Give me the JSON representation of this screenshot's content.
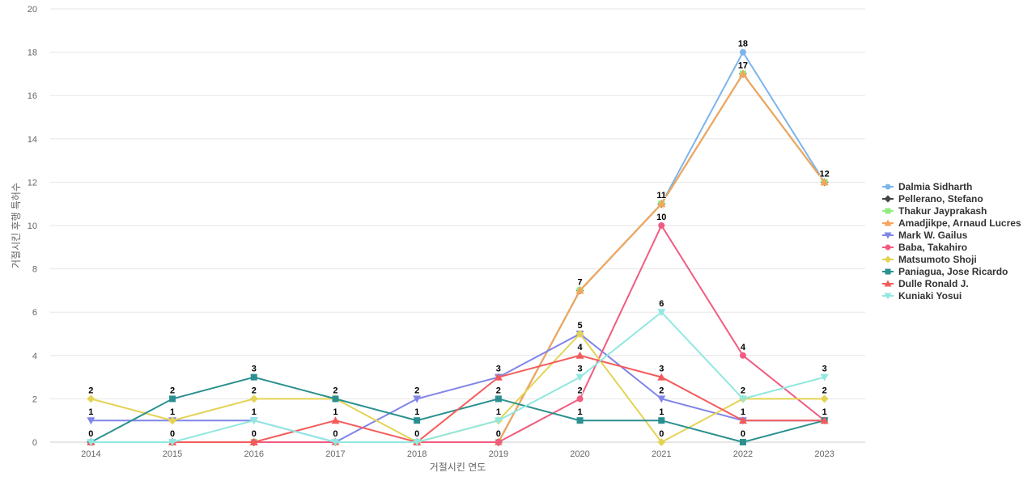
{
  "chart_data": {
    "type": "line",
    "title": "",
    "xlabel": "거절시킨 연도",
    "ylabel": "거절시킨 후행 특허수",
    "x": [
      "2014",
      "2015",
      "2016",
      "2017",
      "2018",
      "2019",
      "2020",
      "2021",
      "2022",
      "2023"
    ],
    "ylim": [
      0,
      20
    ],
    "yticks": [
      0,
      2,
      4,
      6,
      8,
      10,
      12,
      14,
      16,
      18,
      20
    ],
    "grid": true,
    "legend_position": "right",
    "series": [
      {
        "name": "Dalmia Sidharth",
        "color": "#7cb5ec",
        "marker": "circle",
        "values": [
          0,
          0,
          0,
          0,
          0,
          0,
          7,
          11,
          18,
          12
        ],
        "labels": true
      },
      {
        "name": "Pellerano, Stefano",
        "color": "#434348",
        "marker": "diamond",
        "values": [
          0,
          0,
          0,
          0,
          0,
          0,
          7,
          11,
          17,
          12
        ],
        "labels": false
      },
      {
        "name": "Thakur Jayprakash",
        "color": "#90ed7d",
        "marker": "square",
        "values": [
          0,
          0,
          0,
          0,
          0,
          0,
          7,
          11,
          17,
          12
        ],
        "labels": false
      },
      {
        "name": "Amadjikpe, Arnaud Lucres",
        "color": "#f7a35c",
        "marker": "triangle",
        "values": [
          0,
          0,
          0,
          0,
          0,
          0,
          7,
          11,
          17,
          12
        ],
        "labels": true
      },
      {
        "name": "Mark W. Gailus",
        "color": "#8085e9",
        "marker": "triangle-down",
        "values": [
          1,
          1,
          1,
          0,
          2,
          3,
          5,
          2,
          1,
          1
        ],
        "labels": true
      },
      {
        "name": "Baba, Takahiro",
        "color": "#f15c80",
        "marker": "circle",
        "values": [
          0,
          0,
          0,
          0,
          0,
          0,
          2,
          10,
          4,
          1
        ],
        "labels": true
      },
      {
        "name": "Matsumoto Shoji",
        "color": "#e4d354",
        "marker": "diamond",
        "values": [
          2,
          1,
          2,
          2,
          0,
          1,
          5,
          0,
          2,
          2
        ],
        "labels": true
      },
      {
        "name": "Paniagua, Jose Ricardo",
        "color": "#2b908f",
        "marker": "square",
        "values": [
          0,
          2,
          3,
          2,
          1,
          2,
          1,
          1,
          0,
          1
        ],
        "labels": true
      },
      {
        "name": "Dulle Ronald J.",
        "color": "#f45b5b",
        "marker": "triangle",
        "values": [
          0,
          0,
          0,
          1,
          0,
          3,
          4,
          3,
          1,
          1
        ],
        "labels": true
      },
      {
        "name": "Kuniaki Yosui",
        "color": "#91e8e1",
        "marker": "triangle-down",
        "values": [
          0,
          0,
          1,
          0,
          0,
          1,
          3,
          6,
          2,
          3
        ],
        "labels": true
      }
    ]
  }
}
